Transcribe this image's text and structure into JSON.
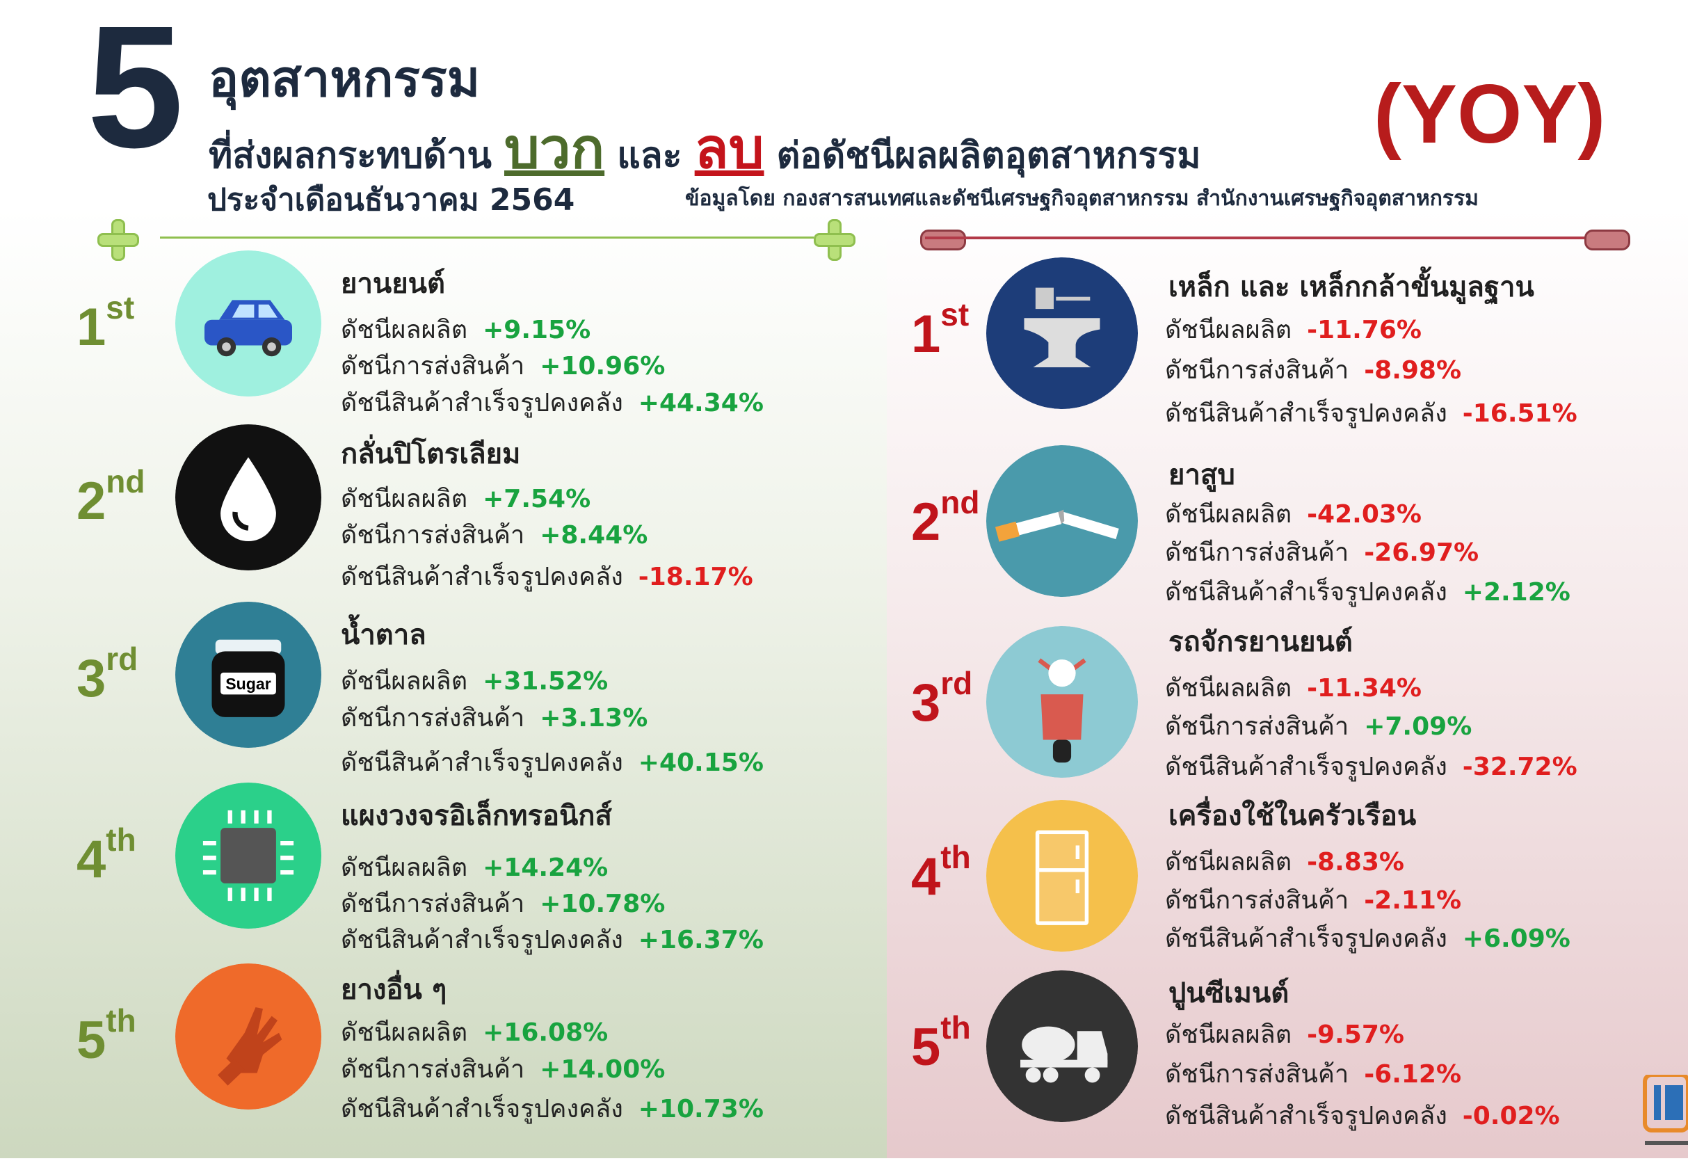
{
  "header": {
    "number": "5",
    "line1": "อุตสาหกรรม",
    "line2_prefix": "ที่ส่งผลกระทบด้าน",
    "positive_word": "บวก",
    "and_word": "และ",
    "negative_word": "ลบ",
    "line2_suffix": "ต่อดัชนีผลผลิตอุตสาหกรรม",
    "period": "ประจำเดือนธันวาคม 2564",
    "yoy": "(YOY)",
    "source": "ข้อมูลโดย กองสารสนเทศและดัชนีเศรษฐกิจอุตสาหกรรม สำนักงานเศรษฐกิจอุตสาหกรรม"
  },
  "labels": {
    "production": "ดัชนีผลผลิต",
    "shipment": "ดัชนีการส่งสินค้า",
    "inventory": "ดัชนีสินค้าสำเร็จรูปคงคลัง"
  },
  "positive": [
    {
      "rank": "1",
      "suffix": "st",
      "name": "ยานยนต์",
      "production": "+9.15%",
      "shipment": "+10.96%",
      "inventory": "+44.34%",
      "icon": "car-icon"
    },
    {
      "rank": "2",
      "suffix": "nd",
      "name": "กลั่นปิโตรเลียม",
      "production": "+7.54%",
      "shipment": "+8.44%",
      "inventory": "-18.17%",
      "icon": "oil-drop-icon"
    },
    {
      "rank": "3",
      "suffix": "rd",
      "name": "น้ำตาล",
      "production": "+31.52%",
      "shipment": "+3.13%",
      "inventory": "+40.15%",
      "icon": "sugar-jar-icon",
      "icon_text": "Sugar"
    },
    {
      "rank": "4",
      "suffix": "th",
      "name": "แผงวงจรอิเล็กทรอนิกส์",
      "production": "+14.24%",
      "shipment": "+10.78%",
      "inventory": "+16.37%",
      "icon": "chip-icon"
    },
    {
      "rank": "5",
      "suffix": "th",
      "name": "ยางอื่น ๆ",
      "production": "+16.08%",
      "shipment": "+14.00%",
      "inventory": "+10.73%",
      "icon": "glove-icon"
    }
  ],
  "negative": [
    {
      "rank": "1",
      "suffix": "st",
      "name": "เหล็ก และ เหล็กกล้าขั้นมูลฐาน",
      "production": "-11.76%",
      "shipment": "-8.98%",
      "inventory": "-16.51%",
      "icon": "anvil-icon"
    },
    {
      "rank": "2",
      "suffix": "nd",
      "name": "ยาสูบ",
      "production": "-42.03%",
      "shipment": "-26.97%",
      "inventory": "+2.12%",
      "icon": "cigarette-icon"
    },
    {
      "rank": "3",
      "suffix": "rd",
      "name": "รถจักรยานยนต์",
      "production": "-11.34%",
      "shipment": "+7.09%",
      "inventory": "-32.72%",
      "icon": "scooter-icon"
    },
    {
      "rank": "4",
      "suffix": "th",
      "name": "เครื่องใช้ในครัวเรือน",
      "production": "-8.83%",
      "shipment": "-2.11%",
      "inventory": "+6.09%",
      "icon": "fridge-icon"
    },
    {
      "rank": "5",
      "suffix": "th",
      "name": "ปูนซีเมนต์",
      "production": "-9.57%",
      "shipment": "-6.12%",
      "inventory": "-0.02%",
      "icon": "cement-truck-icon"
    }
  ],
  "colors": {
    "positive": "#18a33f",
    "negative": "#e01e1e"
  }
}
